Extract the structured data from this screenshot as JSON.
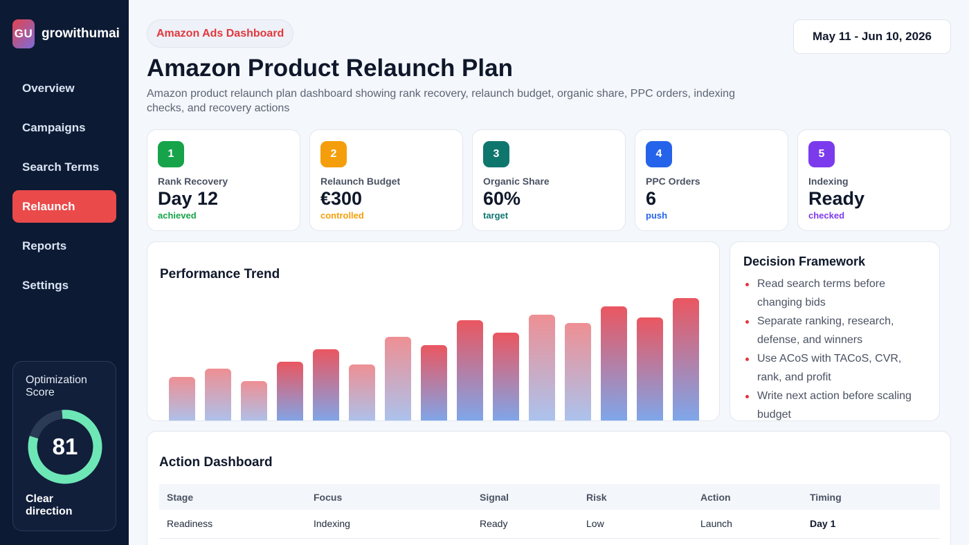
{
  "brand": {
    "logo_text": "GU",
    "name": "growithumai"
  },
  "nav": [
    {
      "label": "Overview",
      "active": false
    },
    {
      "label": "Campaigns",
      "active": false
    },
    {
      "label": "Search Terms",
      "active": false
    },
    {
      "label": "Relaunch",
      "active": true
    },
    {
      "label": "Reports",
      "active": false
    },
    {
      "label": "Settings",
      "active": false
    }
  ],
  "score": {
    "title": "Optimization Score",
    "value": "81",
    "percent": 81,
    "footer": "Clear direction",
    "color": "#6ee7b7",
    "track": "#2b3a55"
  },
  "header": {
    "tag": "Amazon Ads Dashboard",
    "title": "Amazon Product Relaunch Plan",
    "subtitle": "Amazon product relaunch plan dashboard showing rank recovery, relaunch budget, organic share, PPC orders, indexing checks, and recovery actions",
    "date_range": "May 11 - Jun 10, 2026"
  },
  "kpis": [
    {
      "num": "1",
      "label": "Rank Recovery",
      "value": "Day 12",
      "note": "achieved",
      "color": "#16a34a",
      "note_color": "#16a34a"
    },
    {
      "num": "2",
      "label": "Relaunch Budget",
      "value": "€300",
      "note": "controlled",
      "color": "#f59e0b",
      "note_color": "#f59e0b"
    },
    {
      "num": "3",
      "label": "Organic Share",
      "value": "60%",
      "note": "target",
      "color": "#0f766e",
      "note_color": "#0f766e"
    },
    {
      "num": "4",
      "label": "PPC Orders",
      "value": "6",
      "note": "push",
      "color": "#2563eb",
      "note_color": "#2563eb"
    },
    {
      "num": "5",
      "label": "Indexing",
      "value": "Ready",
      "note": "checked",
      "color": "#7c3aed",
      "note_color": "#7c3aed"
    }
  ],
  "chart": {
    "title": "Performance Trend"
  },
  "chart_data": {
    "type": "bar",
    "values": [
      35,
      41,
      32,
      46,
      55,
      44,
      64,
      58,
      76,
      67,
      80,
      74,
      86,
      78,
      92
    ],
    "ylim": [
      0,
      100
    ],
    "grid": false,
    "legend": "none"
  },
  "framework": {
    "title": "Decision Framework",
    "items": [
      "Read search terms before changing bids",
      "Separate ranking, research, defense, and winners",
      "Use ACoS with TACoS, CVR, rank, and profit",
      "Write next action before scaling budget"
    ]
  },
  "actions": {
    "title": "Action Dashboard",
    "columns": [
      "Stage",
      "Focus",
      "Signal",
      "Risk",
      "Action",
      "Timing"
    ],
    "rows": [
      [
        "Readiness",
        "Indexing",
        "Ready",
        "Low",
        "Launch",
        "Day 1"
      ]
    ]
  }
}
